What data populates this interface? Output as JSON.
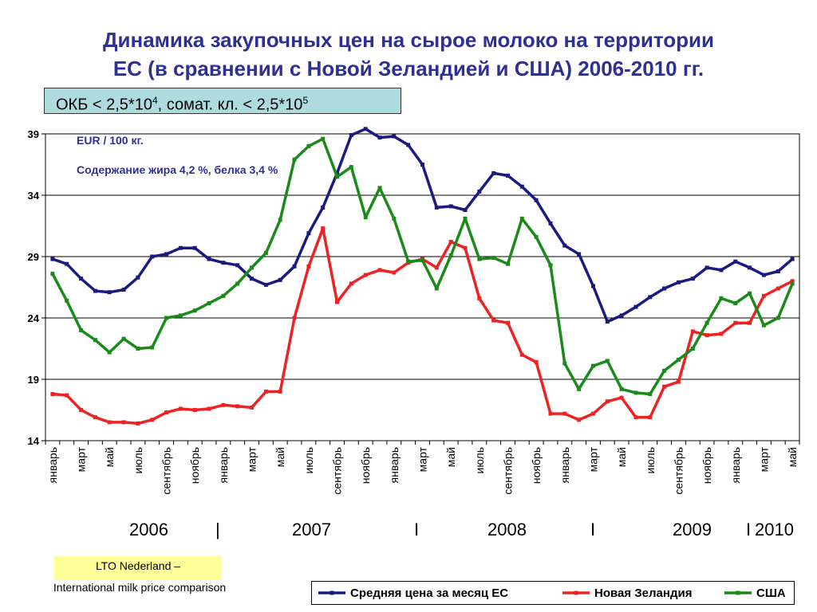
{
  "title_line1": "Динамика закупочных цен на сырое молоко на территории",
  "title_line2": "ЕС (в сравнении с Новой Зеландией и США) 2006-2010 гг.",
  "okb": {
    "pre": "ОКБ < 2,5*10",
    "sup1": "4",
    "mid": ", сомат. кл. < 2,5*10",
    "sup2": "5"
  },
  "source": {
    "line1": "LTO Nederland –",
    "line2": "International milk price comparison",
    "color": "#ffff99"
  },
  "years": [
    {
      "label": "2006",
      "sep": "|"
    },
    {
      "label": "2007",
      "sep": "I"
    },
    {
      "label": "2008",
      "sep": "I"
    },
    {
      "label": "2009",
      "sep": "I"
    },
    {
      "label": "2010",
      "sep": ""
    }
  ],
  "chart_data": {
    "type": "line",
    "unit_label": "EUR / 100 кг.",
    "subtitle": "Содержание жира 4,2 %, белка 3,4 %",
    "ylim": [
      14,
      39
    ],
    "yticks": [
      14,
      19,
      24,
      29,
      34,
      39
    ],
    "grid": true,
    "legend_position": "bottom-right",
    "x_tick_labels": [
      "январь",
      "март",
      "май",
      "июль",
      "сентябрь",
      "ноябрь",
      "январь",
      "март",
      "май",
      "июль",
      "сентябрь",
      "ноябрь",
      "январь",
      "март",
      "май",
      "июль",
      "сентябрь",
      "ноябрь",
      "январь",
      "март",
      "май",
      "июль",
      "сентябрь",
      "ноябрь",
      "январь",
      "март",
      "май"
    ],
    "series": [
      {
        "name": "Средняя цена за месяц ЕС",
        "color": "#1a1a80",
        "values": [
          28.8,
          28.4,
          27.2,
          26.2,
          26.1,
          26.3,
          27.3,
          29.0,
          29.2,
          29.7,
          29.7,
          28.8,
          28.5,
          28.3,
          27.2,
          26.7,
          27.1,
          28.2,
          30.9,
          33.0,
          35.8,
          38.9,
          39.4,
          38.7,
          38.8,
          38.1,
          36.5,
          33.0,
          33.1,
          32.8,
          34.3,
          35.8,
          35.6,
          34.7,
          33.6,
          31.7,
          29.9,
          29.2,
          26.6,
          23.7,
          24.2,
          24.9,
          25.7,
          26.4,
          26.9,
          27.2,
          28.1,
          27.9,
          28.6,
          28.1,
          27.5,
          27.8,
          28.8
        ]
      },
      {
        "name": "Новая Зеландия",
        "color": "#ee2222",
        "values": [
          17.8,
          17.7,
          16.5,
          15.9,
          15.5,
          15.5,
          15.4,
          15.7,
          16.3,
          16.6,
          16.5,
          16.6,
          16.9,
          16.8,
          16.7,
          18.0,
          18.0,
          24.0,
          28.2,
          31.3,
          25.3,
          26.8,
          27.5,
          27.9,
          27.7,
          28.5,
          28.8,
          28.1,
          30.2,
          29.7,
          25.6,
          23.8,
          23.6,
          21.0,
          20.4,
          16.2,
          16.2,
          15.7,
          16.2,
          17.2,
          17.5,
          15.9,
          15.9,
          18.4,
          18.8,
          22.9,
          22.6,
          22.7,
          23.6,
          23.6,
          25.8,
          26.4,
          27.0
        ]
      },
      {
        "name": "США",
        "color": "#1a8a1a",
        "values": [
          27.6,
          25.4,
          23.0,
          22.2,
          21.2,
          22.3,
          21.5,
          21.6,
          24.0,
          24.2,
          24.6,
          25.2,
          25.8,
          26.8,
          28.1,
          29.3,
          32.0,
          36.9,
          38.0,
          38.6,
          35.5,
          36.3,
          32.2,
          34.6,
          32.1,
          28.6,
          28.7,
          26.4,
          29.1,
          32.1,
          28.8,
          28.9,
          28.4,
          32.1,
          30.6,
          28.3,
          20.3,
          18.2,
          20.1,
          20.5,
          18.2,
          17.9,
          17.8,
          19.7,
          20.6,
          21.5,
          23.6,
          25.6,
          25.2,
          26.0,
          23.4,
          24.0,
          26.8
        ]
      }
    ]
  }
}
